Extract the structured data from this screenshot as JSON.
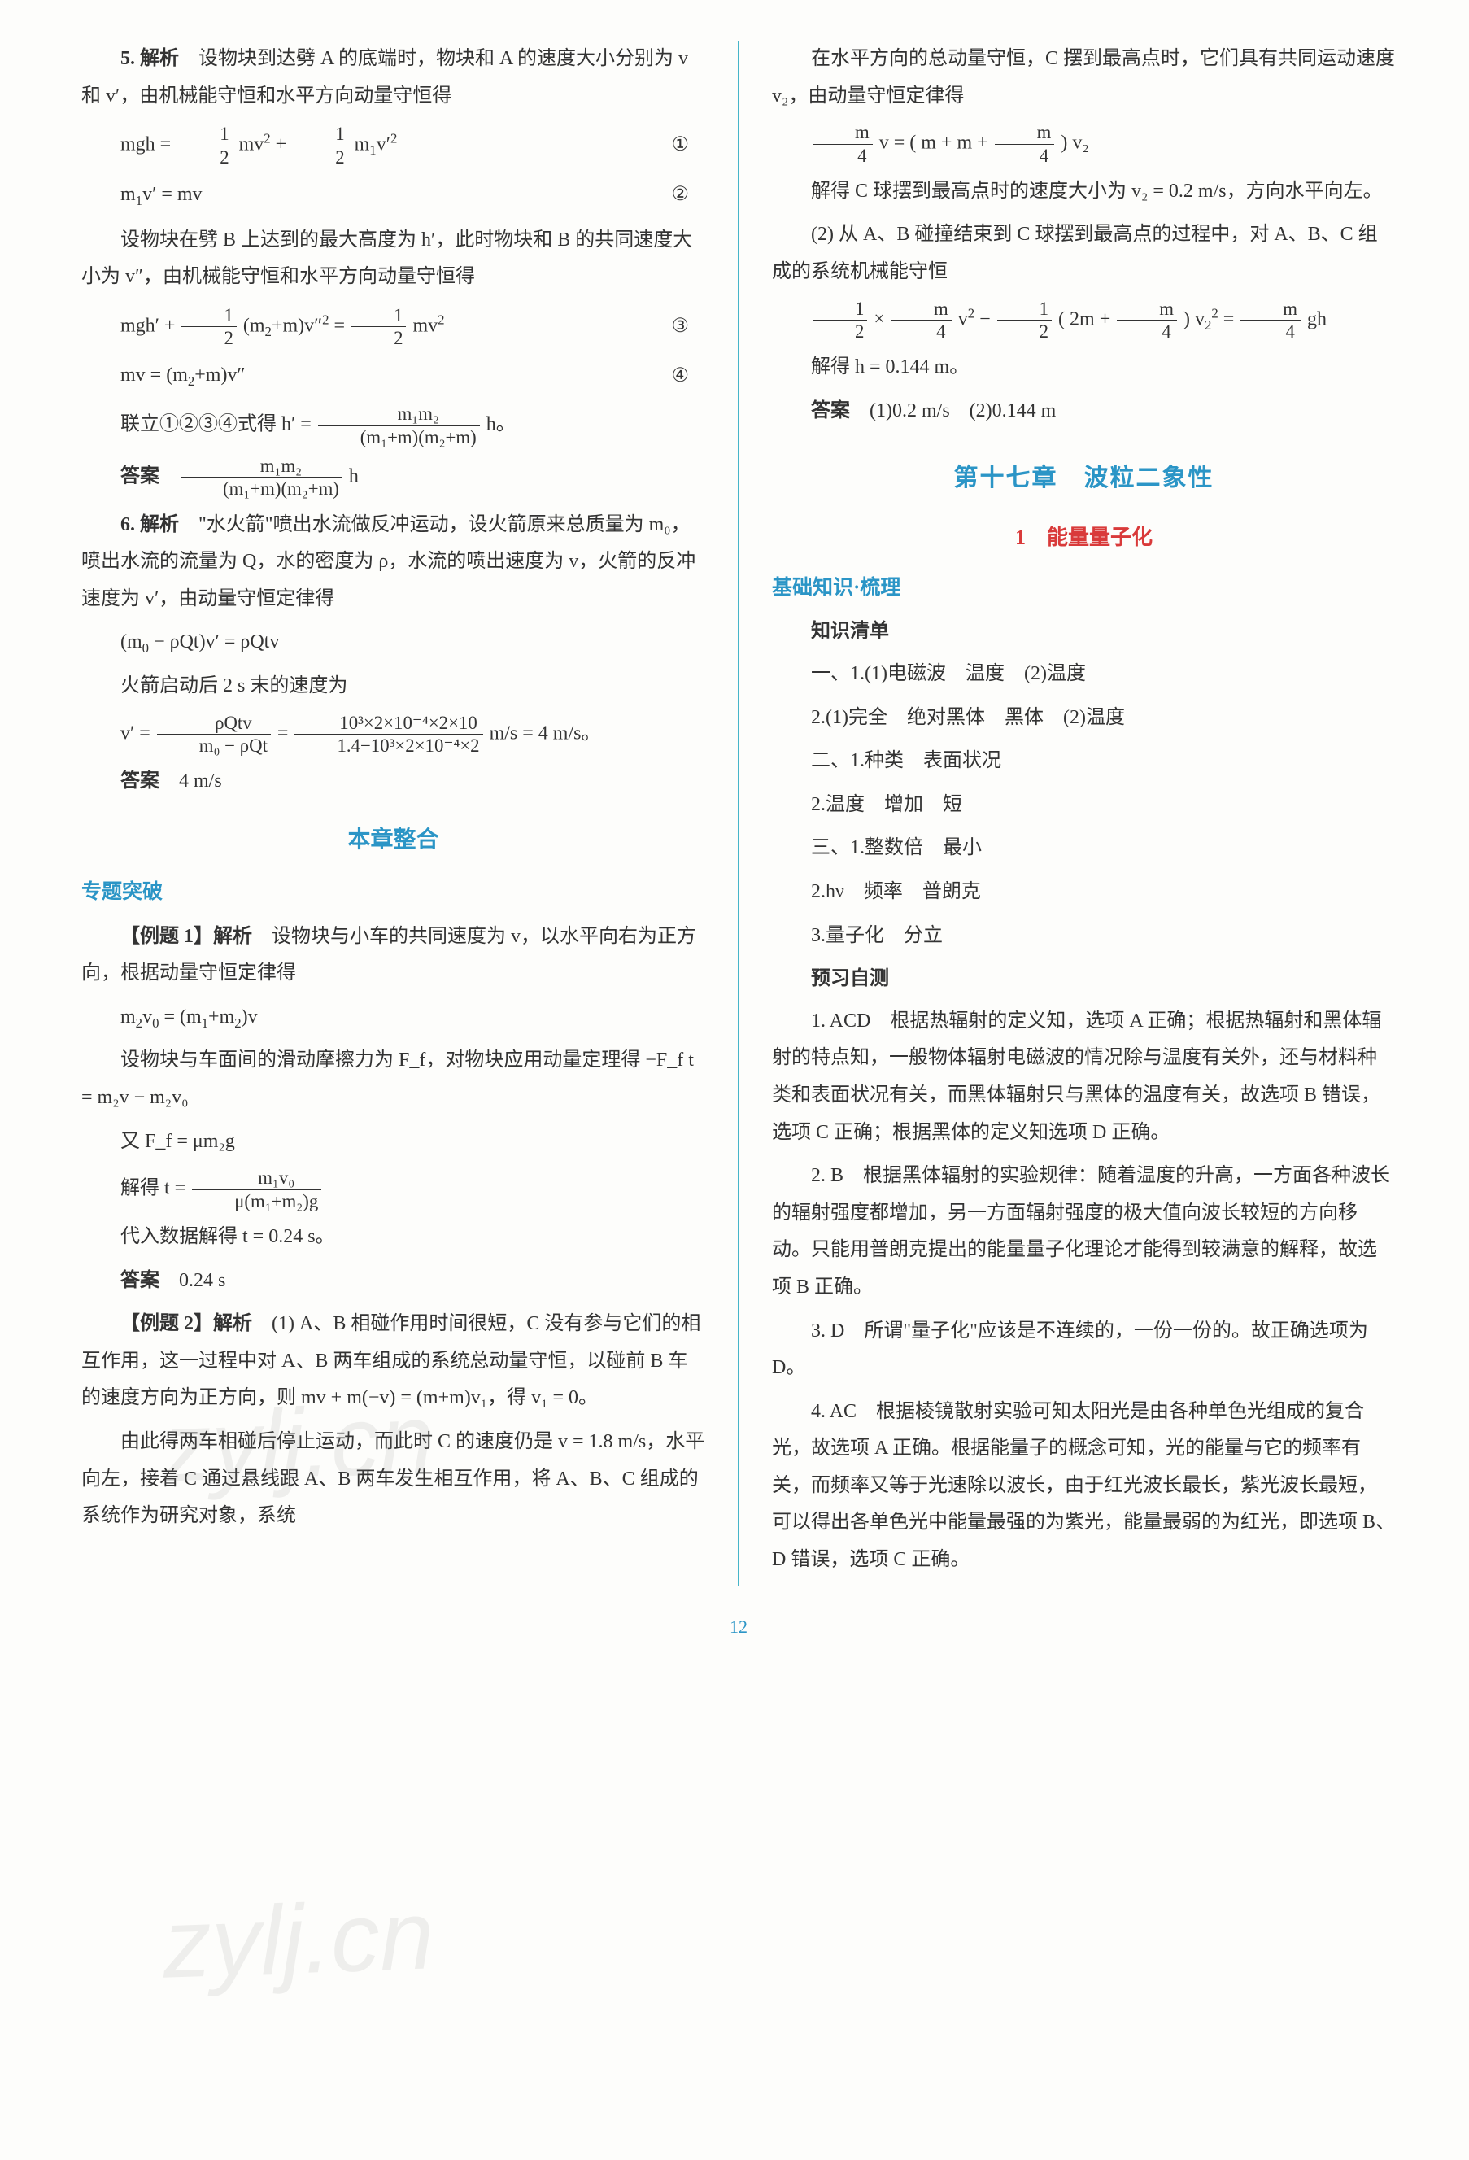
{
  "watermark": "zylj.cn",
  "page_number": "12",
  "left": {
    "q5": {
      "head": "5. 解析",
      "t1": "设物块到达劈 A 的底端时，物块和 A 的速度大小分别为 v 和 v′，由机械能守恒和水平方向动量守恒得",
      "eq1": "mgh = ½ mv² + ½ m₁v′²",
      "eq1no": "①",
      "eq2": "m₁v′ = mv",
      "eq2no": "②",
      "t2": "设物块在劈 B 上达到的最大高度为 h′，此时物块和 B 的共同速度大小为 v″，由机械能守恒和水平方向动量守恒得",
      "eq3": "mgh′ + ½ (m₂+m)v″² = ½ mv²",
      "eq3no": "③",
      "eq4": "mv = (m₂+m)v″",
      "eq4no": "④",
      "t3": "联立①②③④式得 h′ = ",
      "frac_num": "m₁m₂",
      "frac_den": "(m₁+m)(m₂+m)",
      "t3b": " h。",
      "ans_label": "答案",
      "ans_num": "m₁m₂",
      "ans_den": "(m₁+m)(m₂+m)",
      "ans_tail": " h"
    },
    "q6": {
      "head": "6. 解析",
      "t1": "\"水火箭\"喷出水流做反冲运动，设火箭原来总质量为 m₀，喷出水流的流量为 Q，水的密度为 ρ，水流的喷出速度为 v，火箭的反冲速度为 v′，由动量守恒定律得",
      "eq1": "(m₀ − ρQt)v′ = ρQtv",
      "t2": "火箭启动后 2 s 末的速度为",
      "eq2a": "v′ = ",
      "eq2_num1": "ρQtv",
      "eq2_den1": "m₀ − ρQt",
      "eq2_mid": " = ",
      "eq2_num2": "10³×2×10⁻⁴×2×10",
      "eq2_den2": "1.4−10³×2×10⁻⁴×2",
      "eq2b": " m/s = 4 m/s。",
      "ans_label": "答案",
      "ans": "4 m/s"
    },
    "sec1_title": "本章整合",
    "topic1": "专题突破",
    "ex1": {
      "head": "【例题 1】解析",
      "t1": "设物块与小车的共同速度为 v，以水平向右为正方向，根据动量守恒定律得",
      "eq1": "m₂v₀ = (m₁+m₂)v",
      "t2": "设物块与车面间的滑动摩擦力为 F_f，对物块应用动量定理得 −F_f t = m₂v − m₂v₀",
      "t3": "又 F_f = μm₂g",
      "t4a": "解得 t = ",
      "t4_num": "m₁v₀",
      "t4_den": "μ(m₁+m₂)g",
      "t5": "代入数据解得 t = 0.24 s。",
      "ans_label": "答案",
      "ans": "0.24 s"
    },
    "ex2": {
      "head": "【例题 2】解析",
      "t1": "(1) A、B 相碰作用时间很短，C 没有参与它们的相互作用，这一过程中对 A、B 两车组成的系统总动量守恒，以碰前 B 车的速度方向为正方向，则 mv + m(−v) = (m+m)v₁，得 v₁ = 0。",
      "t2": "由此得两车相碰后停止运动，而此时 C 的速度仍是 v = 1.8 m/s，水平向左，接着 C 通过悬线跟 A、B 两车发生相互作用，将 A、B、C 组成的系统作为研究对象，系统"
    }
  },
  "right": {
    "cont": {
      "t1": "在水平方向的总动量守恒，C 摆到最高点时，它们具有共同运动速度 v₂，由动量守恒定律得",
      "eq1a": "",
      "eq1_num": "m",
      "eq1_den": "4",
      "eq1b": " v = ( m + m + ",
      "eq1_num2": "m",
      "eq1_den2": "4",
      "eq1c": " ) v₂",
      "t2": "解得 C 球摆到最高点时的速度大小为 v₂ = 0.2 m/s，方向水平向左。",
      "t3": "(2) 从 A、B 碰撞结束到 C 球摆到最高点的过程中，对 A、B、C 组成的系统机械能守恒",
      "eq2a": "½ × ",
      "eq2_num1": "m",
      "eq2_den1": "4",
      "eq2b": " v² − ½ ( 2m + ",
      "eq2_num2": "m",
      "eq2_den2": "4",
      "eq2c": " ) v₂² = ",
      "eq2_num3": "m",
      "eq2_den3": "4",
      "eq2d": " gh",
      "t4": "解得 h = 0.144 m。",
      "ans_label": "答案",
      "ans": "(1)0.2 m/s　(2)0.144 m"
    },
    "chapter": "第十七章　波粒二象性",
    "sec1": "1　能量量子化",
    "base_title": "基础知识·梳理",
    "zhishi": "知识清单",
    "items": {
      "i1": "一、1.(1)电磁波　温度　(2)温度",
      "i2": "2.(1)完全　绝对黑体　黑体　(2)温度",
      "i3": "二、1.种类　表面状况",
      "i4": "2.温度　增加　短",
      "i5": "三、1.整数倍　最小",
      "i6": "2.hν　频率　普朗克",
      "i7": "3.量子化　分立"
    },
    "yuxi": "预习自测",
    "a1": "1. ACD　根据热辐射的定义知，选项 A 正确；根据热辐射和黑体辐射的特点知，一般物体辐射电磁波的情况除与温度有关外，还与材料种类和表面状况有关，而黑体辐射只与黑体的温度有关，故选项 B 错误，选项 C 正确；根据黑体的定义知选项 D 正确。",
    "a2": "2. B　根据黑体辐射的实验规律：随着温度的升高，一方面各种波长的辐射强度都增加，另一方面辐射强度的极大值向波长较短的方向移动。只能用普朗克提出的能量量子化理论才能得到较满意的解释，故选项 B 正确。",
    "a3": "3. D　所谓\"量子化\"应该是不连续的，一份一份的。故正确选项为 D。",
    "a4": "4. AC　根据棱镜散射实验可知太阳光是由各种单色光组成的复合光，故选项 A 正确。根据能量子的概念可知，光的能量与它的频率有关，而频率又等于光速除以波长，由于红光波长最长，紫光波长最短，可以得出各单色光中能量最强的为紫光，能量最弱的为红光，即选项 B、D 错误，选项 C 正确。"
  }
}
